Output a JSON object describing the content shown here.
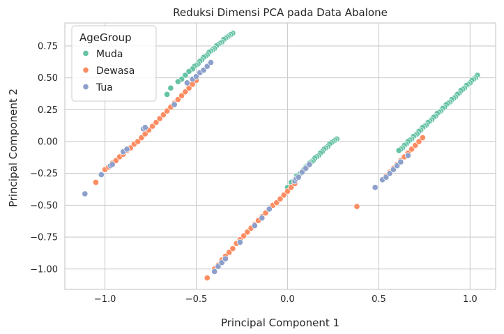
{
  "chart_data": {
    "type": "scatter",
    "title": "Reduksi Dimensi PCA pada Data Abalone",
    "xlabel": "Principal Component 1",
    "ylabel": "Principal Component 2",
    "xlim": [
      -1.22,
      1.14
    ],
    "ylim": [
      -1.16,
      0.93
    ],
    "xticks": [
      -1.0,
      -0.5,
      0.0,
      0.5,
      1.0
    ],
    "xtick_labels": [
      "−1.0",
      "−0.5",
      "0.0",
      "0.5",
      "1.0"
    ],
    "yticks": [
      -1.0,
      -0.75,
      -0.5,
      -0.25,
      0.0,
      0.25,
      0.5,
      0.75
    ],
    "ytick_labels": [
      "−1.00",
      "−0.75",
      "−0.50",
      "−0.25",
      "0.00",
      "0.25",
      "0.50",
      "0.75"
    ],
    "grid": true,
    "legend": {
      "title": "AgeGroup",
      "placement": "top-left",
      "entries": [
        "Muda",
        "Dewasa",
        "Tua"
      ]
    },
    "colors": {
      "Muda": "#66c2a5",
      "Dewasa": "#fc8d62",
      "Tua": "#8da0cb",
      "grid": "#cccccc",
      "background": "#ffffff"
    },
    "series": [
      {
        "name": "Muda",
        "points": [
          [
            -0.3,
            0.85
          ],
          [
            -0.31,
            0.84
          ],
          [
            -0.32,
            0.83
          ],
          [
            -0.33,
            0.82
          ],
          [
            -0.34,
            0.81
          ],
          [
            -0.35,
            0.8
          ],
          [
            -0.36,
            0.78
          ],
          [
            -0.37,
            0.77
          ],
          [
            -0.38,
            0.76
          ],
          [
            -0.39,
            0.75
          ],
          [
            -0.4,
            0.73
          ],
          [
            -0.41,
            0.72
          ],
          [
            -0.42,
            0.71
          ],
          [
            -0.43,
            0.7
          ],
          [
            -0.44,
            0.68
          ],
          [
            -0.45,
            0.67
          ],
          [
            -0.46,
            0.66
          ],
          [
            -0.47,
            0.64
          ],
          [
            -0.48,
            0.63
          ],
          [
            -0.49,
            0.61
          ],
          [
            -0.5,
            0.6
          ],
          [
            -0.51,
            0.59
          ],
          [
            -0.52,
            0.57
          ],
          [
            -0.54,
            0.55
          ],
          [
            -0.56,
            0.52
          ],
          [
            -0.58,
            0.49
          ],
          [
            -0.6,
            0.47
          ],
          [
            -0.64,
            0.42
          ],
          [
            -0.66,
            0.37
          ],
          [
            0.27,
            0.02
          ],
          [
            0.26,
            0.01
          ],
          [
            0.25,
            0.0
          ],
          [
            0.24,
            -0.01
          ],
          [
            0.23,
            -0.02
          ],
          [
            0.22,
            -0.04
          ],
          [
            0.21,
            -0.05
          ],
          [
            0.2,
            -0.06
          ],
          [
            0.19,
            -0.08
          ],
          [
            0.18,
            -0.09
          ],
          [
            0.17,
            -0.11
          ],
          [
            0.16,
            -0.12
          ],
          [
            0.15,
            -0.13
          ],
          [
            0.14,
            -0.15
          ],
          [
            0.13,
            -0.16
          ],
          [
            0.12,
            -0.17
          ],
          [
            0.11,
            -0.19
          ],
          [
            0.1,
            -0.2
          ],
          [
            0.09,
            -0.22
          ],
          [
            0.07,
            -0.25
          ],
          [
            0.05,
            -0.27
          ],
          [
            0.04,
            -0.3
          ],
          [
            0.02,
            -0.32
          ],
          [
            0.0,
            -0.36
          ],
          [
            1.04,
            0.52
          ],
          [
            1.03,
            0.5
          ],
          [
            1.02,
            0.49
          ],
          [
            1.01,
            0.48
          ],
          [
            1.0,
            0.46
          ],
          [
            0.99,
            0.45
          ],
          [
            0.98,
            0.44
          ],
          [
            0.97,
            0.42
          ],
          [
            0.96,
            0.41
          ],
          [
            0.95,
            0.4
          ],
          [
            0.94,
            0.38
          ],
          [
            0.93,
            0.37
          ],
          [
            0.92,
            0.35
          ],
          [
            0.91,
            0.34
          ],
          [
            0.9,
            0.33
          ],
          [
            0.89,
            0.31
          ],
          [
            0.88,
            0.3
          ],
          [
            0.87,
            0.29
          ],
          [
            0.86,
            0.27
          ],
          [
            0.85,
            0.26
          ],
          [
            0.84,
            0.24
          ],
          [
            0.83,
            0.23
          ],
          [
            0.82,
            0.22
          ],
          [
            0.81,
            0.2
          ],
          [
            0.8,
            0.19
          ],
          [
            0.79,
            0.17
          ],
          [
            0.78,
            0.16
          ],
          [
            0.77,
            0.15
          ],
          [
            0.76,
            0.13
          ],
          [
            0.75,
            0.12
          ],
          [
            0.74,
            0.11
          ],
          [
            0.73,
            0.09
          ],
          [
            0.72,
            0.08
          ],
          [
            0.71,
            0.06
          ],
          [
            0.7,
            0.05
          ],
          [
            0.69,
            0.04
          ],
          [
            0.68,
            0.02
          ],
          [
            0.67,
            0.01
          ],
          [
            0.66,
            0.0
          ],
          [
            0.65,
            -0.02
          ],
          [
            0.64,
            -0.03
          ],
          [
            0.63,
            -0.05
          ],
          [
            0.62,
            -0.06
          ],
          [
            0.61,
            -0.07
          ]
        ]
      },
      {
        "name": "Dewasa",
        "points": [
          [
            -1.05,
            -0.32
          ],
          [
            -1.0,
            -0.22
          ],
          [
            -0.98,
            -0.2
          ],
          [
            -0.96,
            -0.17
          ],
          [
            -0.94,
            -0.15
          ],
          [
            -0.92,
            -0.12
          ],
          [
            -0.9,
            -0.1
          ],
          [
            -0.88,
            -0.07
          ],
          [
            -0.86,
            -0.05
          ],
          [
            -0.84,
            -0.02
          ],
          [
            -0.82,
            0.0
          ],
          [
            -0.8,
            0.03
          ],
          [
            -0.78,
            0.06
          ],
          [
            -0.76,
            0.09
          ],
          [
            -0.74,
            0.12
          ],
          [
            -0.72,
            0.15
          ],
          [
            -0.7,
            0.18
          ],
          [
            -0.68,
            0.21
          ],
          [
            -0.66,
            0.24
          ],
          [
            -0.64,
            0.27
          ],
          [
            -0.62,
            0.3
          ],
          [
            -0.6,
            0.33
          ],
          [
            -0.58,
            0.36
          ],
          [
            -0.56,
            0.39
          ],
          [
            -0.54,
            0.42
          ],
          [
            -0.52,
            0.45
          ],
          [
            -0.5,
            0.48
          ],
          [
            -0.44,
            -1.07
          ],
          [
            -0.4,
            -1.0
          ],
          [
            -0.38,
            -0.97
          ],
          [
            -0.36,
            -0.93
          ],
          [
            -0.34,
            -0.9
          ],
          [
            -0.32,
            -0.87
          ],
          [
            -0.3,
            -0.84
          ],
          [
            -0.28,
            -0.8
          ],
          [
            -0.26,
            -0.77
          ],
          [
            -0.24,
            -0.74
          ],
          [
            -0.22,
            -0.71
          ],
          [
            -0.2,
            -0.68
          ],
          [
            -0.18,
            -0.65
          ],
          [
            -0.16,
            -0.62
          ],
          [
            -0.14,
            -0.59
          ],
          [
            -0.12,
            -0.56
          ],
          [
            -0.1,
            -0.53
          ],
          [
            -0.08,
            -0.5
          ],
          [
            -0.06,
            -0.48
          ],
          [
            -0.04,
            -0.45
          ],
          [
            -0.02,
            -0.42
          ],
          [
            0.0,
            -0.39
          ],
          [
            0.02,
            -0.36
          ],
          [
            0.04,
            -0.33
          ],
          [
            0.38,
            -0.51
          ],
          [
            0.52,
            -0.3
          ],
          [
            0.54,
            -0.27
          ],
          [
            0.56,
            -0.24
          ],
          [
            0.58,
            -0.21
          ],
          [
            0.6,
            -0.18
          ],
          [
            0.62,
            -0.15
          ],
          [
            0.64,
            -0.12
          ],
          [
            0.66,
            -0.09
          ],
          [
            0.68,
            -0.06
          ],
          [
            0.7,
            -0.03
          ],
          [
            0.72,
            0.0
          ],
          [
            0.74,
            0.03
          ]
        ]
      },
      {
        "name": "Tua",
        "points": [
          [
            -1.11,
            -0.41
          ],
          [
            -1.02,
            -0.26
          ],
          [
            -0.97,
            -0.19
          ],
          [
            -0.96,
            -0.18
          ],
          [
            -0.9,
            -0.08
          ],
          [
            -0.88,
            -0.06
          ],
          [
            -0.79,
            0.1
          ],
          [
            -0.78,
            0.11
          ],
          [
            -0.62,
            0.29
          ],
          [
            -0.55,
            0.46
          ],
          [
            -0.52,
            0.49
          ],
          [
            -0.5,
            0.51
          ],
          [
            -0.48,
            0.54
          ],
          [
            -0.46,
            0.56
          ],
          [
            -0.44,
            0.59
          ],
          [
            -0.42,
            0.62
          ],
          [
            -0.4,
            -1.02
          ],
          [
            -0.38,
            -0.98
          ],
          [
            -0.36,
            -0.95
          ],
          [
            -0.34,
            -0.92
          ],
          [
            -0.26,
            -0.79
          ],
          [
            -0.18,
            -0.66
          ],
          [
            -0.14,
            -0.6
          ],
          [
            -0.1,
            -0.53
          ],
          [
            0.04,
            -0.31
          ],
          [
            0.05,
            -0.29
          ],
          [
            0.06,
            -0.28
          ],
          [
            0.08,
            -0.24
          ],
          [
            0.1,
            -0.21
          ],
          [
            0.12,
            -0.18
          ],
          [
            0.48,
            -0.36
          ],
          [
            0.52,
            -0.3
          ],
          [
            0.54,
            -0.28
          ],
          [
            0.56,
            -0.25
          ],
          [
            0.58,
            -0.22
          ],
          [
            0.6,
            -0.19
          ],
          [
            0.62,
            -0.16
          ],
          [
            0.66,
            -0.11
          ]
        ]
      }
    ]
  }
}
